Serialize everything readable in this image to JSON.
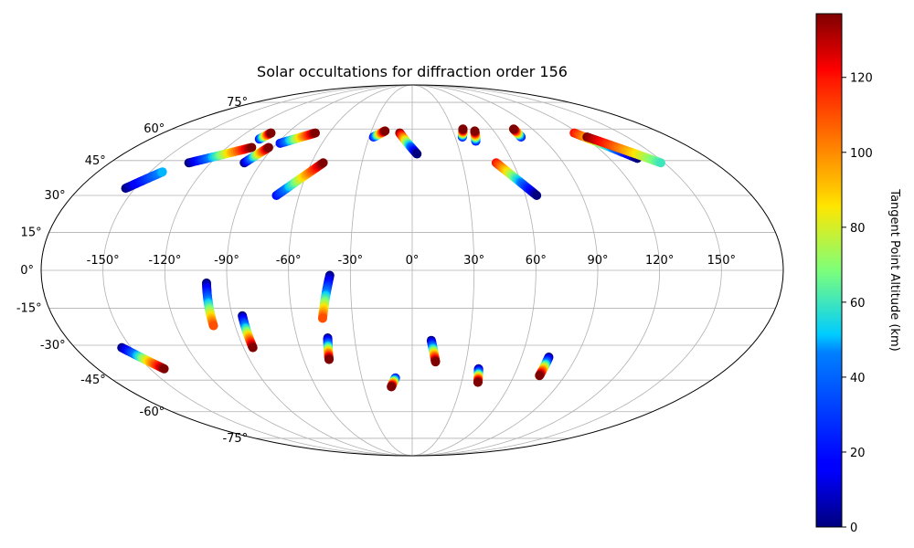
{
  "chart_data": {
    "type": "scatter",
    "projection": "mollweide",
    "title": "Solar occultations for diffraction order 156",
    "xlabel": "",
    "ylabel": "",
    "xlim": [
      -180,
      180
    ],
    "ylim": [
      -90,
      90
    ],
    "grid": true,
    "lon_ticks": [
      -150,
      -120,
      -90,
      -60,
      -30,
      0,
      30,
      60,
      90,
      120,
      150
    ],
    "lat_ticks": [
      -75,
      -60,
      -45,
      -30,
      -15,
      0,
      15,
      30,
      45,
      60,
      75
    ],
    "lon_tick_labels": [
      "-150°",
      "-120°",
      "-90°",
      "-60°",
      "-30°",
      "0°",
      "30°",
      "60°",
      "90°",
      "120°",
      "150°"
    ],
    "lat_tick_labels": [
      "-75°",
      "-60°",
      "-45°",
      "-30°",
      "-15°",
      "0°",
      "15°",
      "30°",
      "45°",
      "60°",
      "75°"
    ],
    "colormap": "jet",
    "colorbar": {
      "label": "Tangent Point Altitude (km)",
      "min": 0,
      "max": 137,
      "ticks": [
        0,
        20,
        40,
        60,
        80,
        100,
        120
      ],
      "tick_labels": [
        "0",
        "20",
        "40",
        "60",
        "80",
        "100",
        "120"
      ],
      "placement": "right"
    },
    "series": [
      {
        "lon_start": -155,
        "lat_start": 33,
        "lon_end": -143,
        "lat_end": 40,
        "alt_start": 0,
        "alt_end": 50
      },
      {
        "lon_start": -133,
        "lat_start": 44,
        "lon_end": -104,
        "lat_end": 51,
        "alt_start": 0,
        "alt_end": 137
      },
      {
        "lon_start": -105,
        "lat_start": 55,
        "lon_end": -102,
        "lat_end": 58,
        "alt_start": 20,
        "alt_end": 137
      },
      {
        "lon_start": -100,
        "lat_start": 44,
        "lon_end": -93,
        "lat_end": 51,
        "alt_start": 0,
        "alt_end": 137
      },
      {
        "lon_start": -88,
        "lat_start": 53,
        "lon_end": -70,
        "lat_end": 58,
        "alt_start": 20,
        "alt_end": 137
      },
      {
        "lon_start": -72,
        "lat_start": 30,
        "lon_end": -53,
        "lat_end": 44,
        "alt_start": 20,
        "alt_end": 137
      },
      {
        "lon_start": -27,
        "lat_start": 56,
        "lon_end": -20,
        "lat_end": 59,
        "alt_start": 20,
        "alt_end": 137
      },
      {
        "lon_start": -9,
        "lat_start": 58,
        "lon_end": 3,
        "lat_end": 48,
        "alt_start": 137,
        "alt_end": 0
      },
      {
        "lon_start": 35,
        "lat_start": 56,
        "lon_end": 38,
        "lat_end": 60,
        "alt_start": 20,
        "alt_end": 137
      },
      {
        "lon_start": 43,
        "lat_start": 54,
        "lon_end": 46,
        "lat_end": 59,
        "alt_start": 20,
        "alt_end": 137
      },
      {
        "lon_start": 50,
        "lat_start": 44,
        "lon_end": 66,
        "lat_end": 30,
        "alt_start": 120,
        "alt_end": 0
      },
      {
        "lon_start": 76,
        "lat_start": 56,
        "lon_end": 76,
        "lat_end": 60,
        "alt_start": 20,
        "alt_end": 137
      },
      {
        "lon_start": 117,
        "lat_start": 58,
        "lon_end": 137,
        "lat_end": 46,
        "alt_start": 120,
        "alt_end": 0
      },
      {
        "lon_start": 122,
        "lat_start": 56,
        "lon_end": 148,
        "lat_end": 44,
        "alt_start": 137,
        "alt_end": 60
      },
      {
        "lon_start": -100,
        "lat_start": -5,
        "lon_end": -101,
        "lat_end": -22,
        "alt_start": 0,
        "alt_end": 110
      },
      {
        "lon_start": -85,
        "lat_start": -18,
        "lon_end": -85,
        "lat_end": -31,
        "alt_start": 0,
        "alt_end": 137
      },
      {
        "lon_start": -40,
        "lat_start": -2,
        "lon_end": -45,
        "lat_end": -19,
        "alt_start": 0,
        "alt_end": 110
      },
      {
        "lon_start": -44,
        "lat_start": -27,
        "lon_end": -46,
        "lat_end": -36,
        "alt_start": 0,
        "alt_end": 137
      },
      {
        "lon_start": -155,
        "lat_start": -31,
        "lon_end": -142,
        "lat_end": -40,
        "alt_start": 0,
        "alt_end": 137
      },
      {
        "lon_start": -10,
        "lat_start": -44,
        "lon_end": -13,
        "lat_end": -48,
        "alt_start": 20,
        "alt_end": 137
      },
      {
        "lon_start": 10,
        "lat_start": -28,
        "lon_end": 13,
        "lat_end": -37,
        "alt_start": 0,
        "alt_end": 137
      },
      {
        "lon_start": 38,
        "lat_start": -40,
        "lon_end": 40,
        "lat_end": -46,
        "alt_start": 0,
        "alt_end": 137
      },
      {
        "lon_start": 75,
        "lat_start": -35,
        "lon_end": 75,
        "lat_end": -43,
        "alt_start": 0,
        "alt_end": 137
      }
    ]
  }
}
